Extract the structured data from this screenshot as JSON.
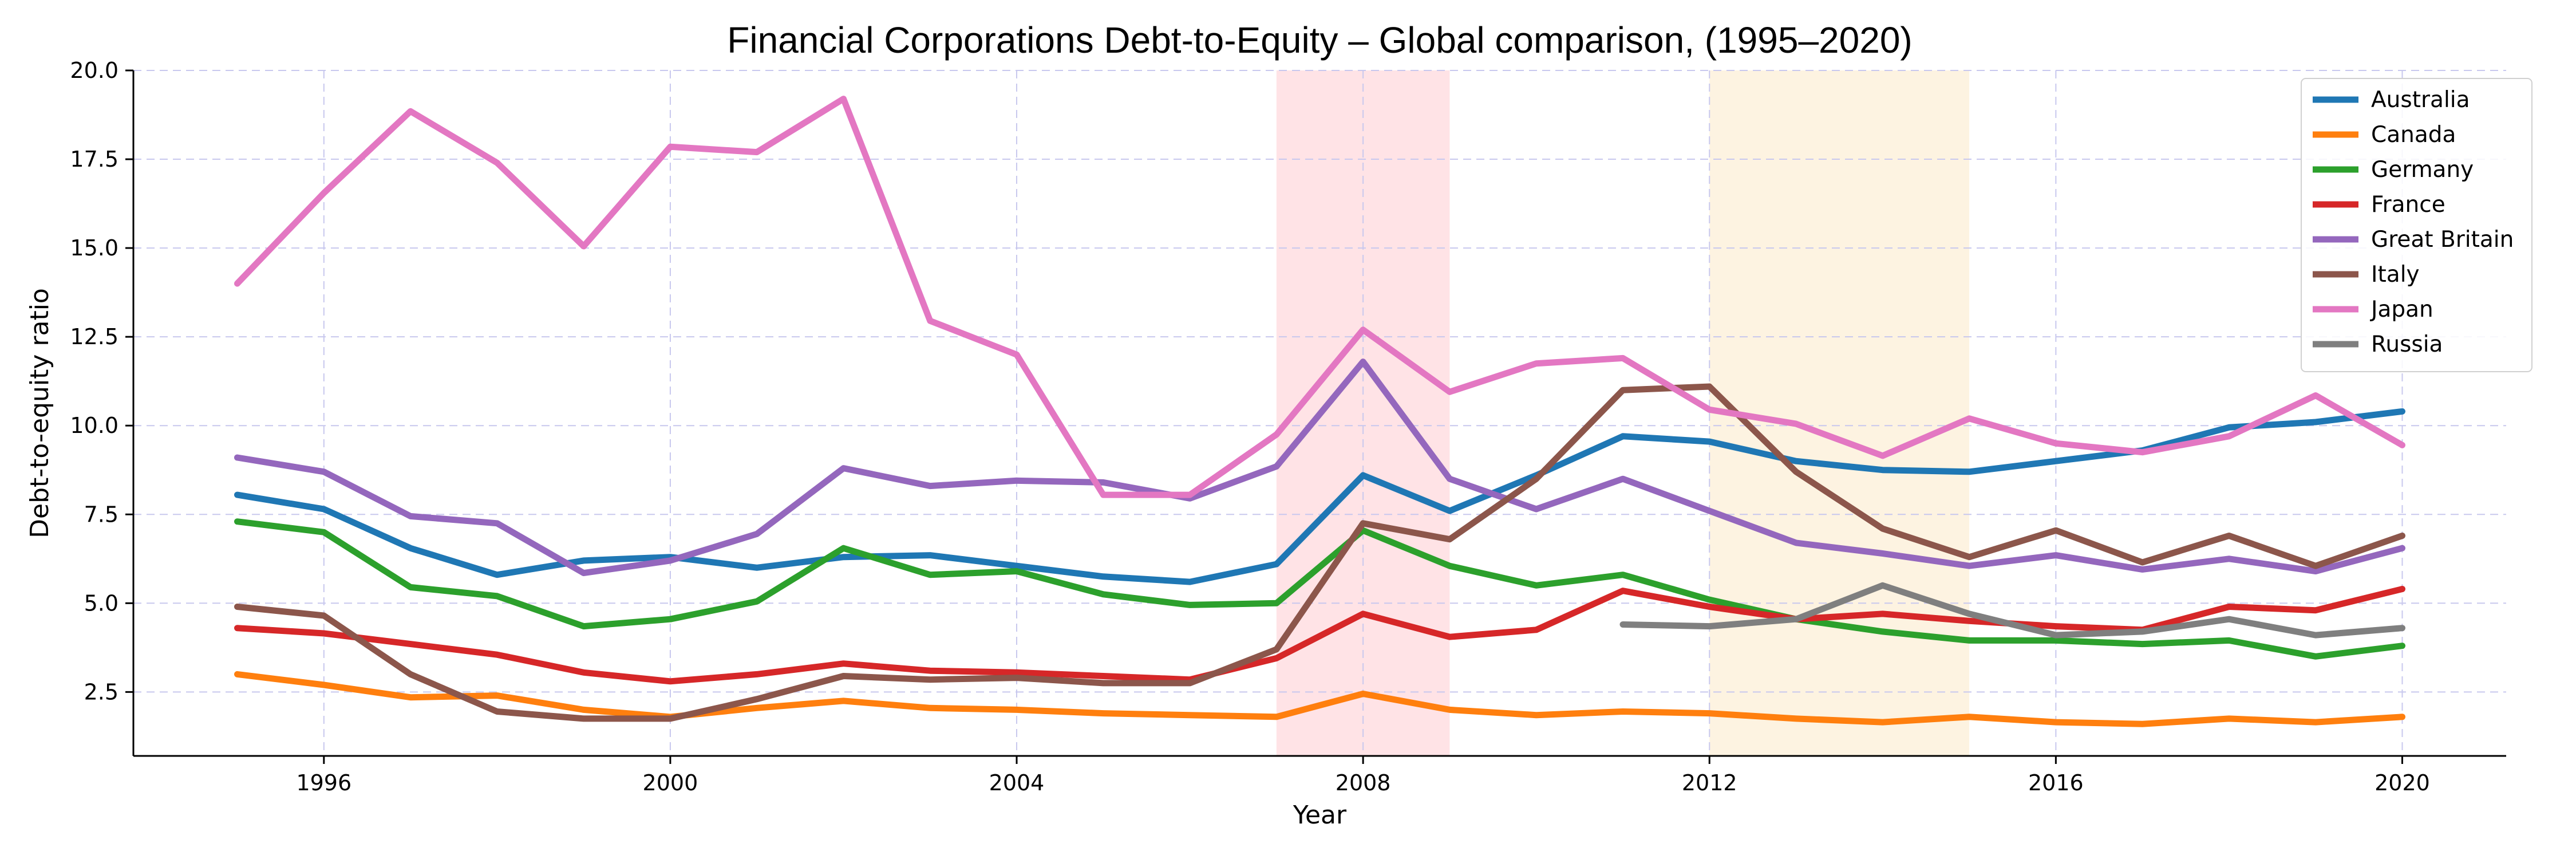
{
  "chart_data": {
    "type": "line",
    "title": "Financial Corporations Debt-to-Equity – Global comparison, (1995–2020)",
    "xlabel": "Year",
    "ylabel": "Debt-to-equity ratio",
    "xlim": [
      1993.8,
      2021.2
    ],
    "ylim": [
      0.7,
      20.0
    ],
    "x_ticks": [
      1996,
      2000,
      2004,
      2008,
      2012,
      2016,
      2020
    ],
    "x_tick_labels": [
      "1996",
      "2000",
      "2004",
      "2008",
      "2012",
      "2016",
      "2020"
    ],
    "y_ticks": [
      2.5,
      5.0,
      7.5,
      10.0,
      12.5,
      15.0,
      17.5,
      20.0
    ],
    "y_tick_labels": [
      "2.5",
      "5.0",
      "7.5",
      "10.0",
      "12.5",
      "15.0",
      "17.5",
      "20.0"
    ],
    "grid": true,
    "legend_position": "top-right",
    "shaded_regions": [
      {
        "from": 2007,
        "to": 2009,
        "color": "#ffe3e6"
      },
      {
        "from": 2012,
        "to": 2015,
        "color": "#fdf3e1"
      }
    ],
    "series": [
      {
        "name": "Australia",
        "color": "#1f77b4",
        "x": [
          1995,
          1996,
          1997,
          1998,
          1999,
          2000,
          2001,
          2002,
          2003,
          2004,
          2005,
          2006,
          2007,
          2008,
          2009,
          2010,
          2011,
          2012,
          2013,
          2014,
          2015,
          2016,
          2017,
          2018,
          2019,
          2020
        ],
        "y": [
          8.05,
          7.65,
          6.55,
          5.8,
          6.2,
          6.3,
          6.0,
          6.3,
          6.35,
          6.05,
          5.75,
          5.6,
          6.1,
          8.6,
          7.6,
          8.6,
          9.7,
          9.55,
          9.0,
          8.75,
          8.7,
          9.0,
          9.3,
          9.95,
          10.1,
          10.4
        ]
      },
      {
        "name": "Canada",
        "color": "#ff7f0e",
        "x": [
          1995,
          1996,
          1997,
          1998,
          1999,
          2000,
          2001,
          2002,
          2003,
          2004,
          2005,
          2006,
          2007,
          2008,
          2009,
          2010,
          2011,
          2012,
          2013,
          2014,
          2015,
          2016,
          2017,
          2018,
          2019,
          2020
        ],
        "y": [
          3.0,
          2.7,
          2.35,
          2.4,
          2.0,
          1.8,
          2.05,
          2.25,
          2.05,
          2.0,
          1.9,
          1.85,
          1.8,
          2.45,
          2.0,
          1.85,
          1.95,
          1.9,
          1.75,
          1.65,
          1.8,
          1.65,
          1.6,
          1.75,
          1.65,
          1.8
        ]
      },
      {
        "name": "Germany",
        "color": "#2ca02c",
        "x": [
          1995,
          1996,
          1997,
          1998,
          1999,
          2000,
          2001,
          2002,
          2003,
          2004,
          2005,
          2006,
          2007,
          2008,
          2009,
          2010,
          2011,
          2012,
          2013,
          2014,
          2015,
          2016,
          2017,
          2018,
          2019,
          2020
        ],
        "y": [
          7.3,
          7.0,
          5.45,
          5.2,
          4.35,
          4.55,
          5.05,
          6.55,
          5.8,
          5.9,
          5.25,
          4.95,
          5.0,
          7.05,
          6.05,
          5.5,
          5.8,
          5.1,
          4.55,
          4.2,
          3.95,
          3.95,
          3.85,
          3.95,
          3.5,
          3.8
        ]
      },
      {
        "name": "France",
        "color": "#d62728",
        "x": [
          1995,
          1996,
          1997,
          1998,
          1999,
          2000,
          2001,
          2002,
          2003,
          2004,
          2005,
          2006,
          2007,
          2008,
          2009,
          2010,
          2011,
          2012,
          2013,
          2014,
          2015,
          2016,
          2017,
          2018,
          2019,
          2020
        ],
        "y": [
          4.3,
          4.15,
          3.85,
          3.55,
          3.05,
          2.8,
          3.0,
          3.3,
          3.1,
          3.05,
          2.95,
          2.85,
          3.45,
          4.7,
          4.05,
          4.25,
          5.35,
          4.9,
          4.55,
          4.7,
          4.5,
          4.35,
          4.25,
          4.9,
          4.8,
          5.4
        ]
      },
      {
        "name": "Great Britain",
        "color": "#9467bd",
        "x": [
          1995,
          1996,
          1997,
          1998,
          1999,
          2000,
          2001,
          2002,
          2003,
          2004,
          2005,
          2006,
          2007,
          2008,
          2009,
          2010,
          2011,
          2012,
          2013,
          2014,
          2015,
          2016,
          2017,
          2018,
          2019,
          2020
        ],
        "y": [
          9.1,
          8.7,
          7.45,
          7.25,
          5.85,
          6.2,
          6.95,
          8.8,
          8.3,
          8.45,
          8.4,
          7.95,
          8.85,
          11.8,
          8.5,
          7.65,
          8.5,
          7.6,
          6.7,
          6.4,
          6.05,
          6.35,
          5.95,
          6.25,
          5.9,
          6.55
        ]
      },
      {
        "name": "Italy",
        "color": "#8c564b",
        "x": [
          1995,
          1996,
          1997,
          1998,
          1999,
          2000,
          2001,
          2002,
          2003,
          2004,
          2005,
          2006,
          2007,
          2008,
          2009,
          2010,
          2011,
          2012,
          2013,
          2014,
          2015,
          2016,
          2017,
          2018,
          2019,
          2020
        ],
        "y": [
          4.9,
          4.65,
          3.0,
          1.95,
          1.75,
          1.75,
          2.3,
          2.95,
          2.85,
          2.9,
          2.75,
          2.75,
          3.7,
          7.25,
          6.8,
          8.5,
          11.0,
          11.1,
          8.7,
          7.1,
          6.3,
          7.05,
          6.15,
          6.9,
          6.05,
          6.9
        ]
      },
      {
        "name": "Japan",
        "color": "#e377c2",
        "x": [
          1995,
          1996,
          1997,
          1998,
          1999,
          2000,
          2001,
          2002,
          2003,
          2004,
          2005,
          2006,
          2007,
          2008,
          2009,
          2010,
          2011,
          2012,
          2013,
          2014,
          2015,
          2016,
          2017,
          2018,
          2019,
          2020
        ],
        "y": [
          14.0,
          16.55,
          18.85,
          17.4,
          15.05,
          17.85,
          17.7,
          19.2,
          12.95,
          12.0,
          8.05,
          8.05,
          9.75,
          12.7,
          10.95,
          11.75,
          11.9,
          10.45,
          10.05,
          9.15,
          10.2,
          9.5,
          9.25,
          9.7,
          10.85,
          9.45
        ]
      },
      {
        "name": "Russia",
        "color": "#7f7f7f",
        "x": [
          2011,
          2012,
          2013,
          2014,
          2015,
          2016,
          2017,
          2018,
          2019,
          2020
        ],
        "y": [
          4.4,
          4.35,
          4.55,
          5.5,
          4.7,
          4.1,
          4.2,
          4.55,
          4.1,
          4.3
        ]
      }
    ]
  }
}
